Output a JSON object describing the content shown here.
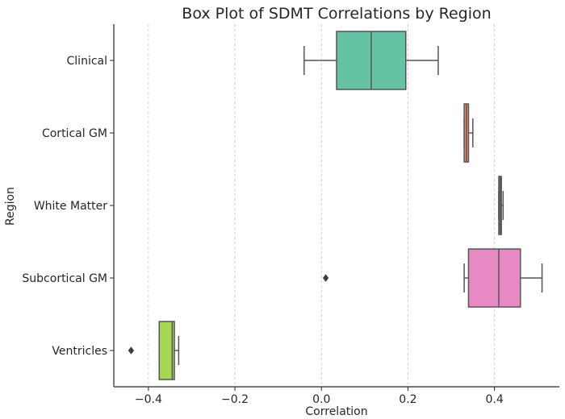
{
  "chart_data": {
    "type": "box",
    "orientation": "horizontal",
    "title": "Box Plot of SDMT Correlations by Region",
    "xlabel": "Correlation",
    "ylabel": "Region",
    "xlim": [
      -0.48,
      0.55
    ],
    "xticks": [
      -0.4,
      -0.2,
      0.0,
      0.2,
      0.4
    ],
    "xtick_labels": [
      "−0.4",
      "−0.2",
      "0.0",
      "0.2",
      "0.4"
    ],
    "grid": "x-axis dashed",
    "categories": [
      "Clinical",
      "Cortical GM",
      "White Matter",
      "Subcortical GM",
      "Ventricles"
    ],
    "series": [
      {
        "name": "Clinical",
        "color": "#66c2a5",
        "whisker_low": -0.04,
        "q1": 0.035,
        "median": 0.115,
        "q3": 0.195,
        "whisker_high": 0.27,
        "outliers": []
      },
      {
        "name": "Cortical GM",
        "color": "#fc8d62",
        "whisker_low": 0.33,
        "q1": 0.33,
        "median": 0.335,
        "q3": 0.34,
        "whisker_high": 0.35,
        "outliers": []
      },
      {
        "name": "White Matter",
        "color": "#8da0cb",
        "whisker_low": 0.41,
        "q1": 0.41,
        "median": 0.413,
        "q3": 0.416,
        "whisker_high": 0.42,
        "outliers": []
      },
      {
        "name": "Subcortical GM",
        "color": "#e78ac3",
        "whisker_low": 0.33,
        "q1": 0.34,
        "median": 0.41,
        "q3": 0.46,
        "whisker_high": 0.51,
        "outliers": [
          0.01
        ]
      },
      {
        "name": "Ventricles",
        "color": "#a6d854",
        "whisker_low": -0.375,
        "q1": -0.375,
        "median": -0.345,
        "q3": -0.34,
        "whisker_high": -0.33,
        "outliers": [
          -0.44
        ]
      }
    ]
  }
}
